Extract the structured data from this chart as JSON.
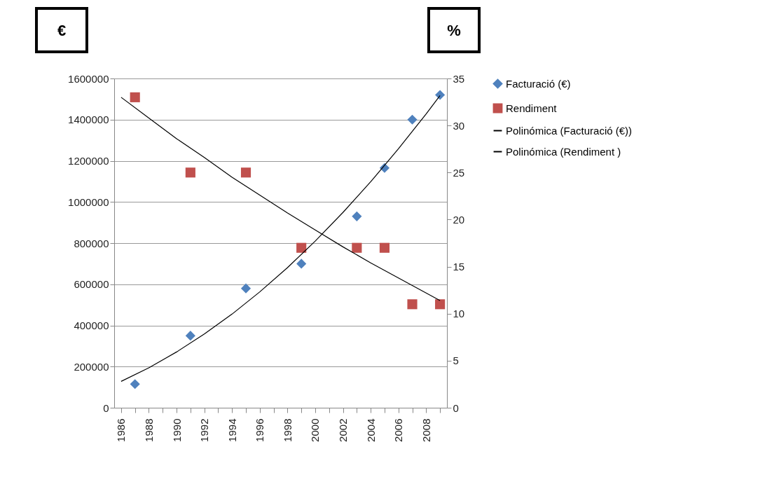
{
  "chart_data": {
    "type": "scatter",
    "annotations": [
      "€",
      "%"
    ],
    "xlim": [
      1985.5,
      2009.5
    ],
    "xticks": [
      1986,
      {
        "value": 1987,
        "label": null
      },
      1988,
      {
        "value": 1989,
        "label": null
      },
      1990,
      {
        "value": 1991,
        "label": null
      },
      1992,
      {
        "value": 1993,
        "label": null
      },
      1994,
      {
        "value": 1995,
        "label": null
      },
      1996,
      {
        "value": 1997,
        "label": null
      },
      1998,
      {
        "value": 1999,
        "label": null
      },
      2000,
      {
        "value": 2001,
        "label": null
      },
      2002,
      {
        "value": 2003,
        "label": null
      },
      2004,
      {
        "value": 2005,
        "label": null
      },
      2006,
      {
        "value": 2007,
        "label": null
      },
      2008,
      {
        "value": 2009,
        "label": null
      }
    ],
    "ylim": [
      0,
      1600000
    ],
    "yticks": [
      0,
      200000,
      400000,
      600000,
      800000,
      1000000,
      1200000,
      1400000,
      1600000
    ],
    "y2lim": [
      0,
      35
    ],
    "y2ticks": [
      0,
      5,
      10,
      15,
      20,
      25,
      30,
      35
    ],
    "grid": "y",
    "legend": "right",
    "series": [
      {
        "name": "Facturació (€)",
        "marker": "diamond",
        "color": "#4f81bd",
        "x": [
          1987,
          1991,
          1995,
          1999,
          2003,
          2005,
          2007,
          2009
        ],
        "values": [
          115000,
          350000,
          580000,
          700000,
          930000,
          1165000,
          1400000,
          1520000
        ]
      },
      {
        "name": "Rendiment",
        "marker": "square",
        "axis": "y2",
        "color": "#c0504d",
        "x": [
          1987,
          1991,
          1995,
          1999,
          2003,
          2005,
          2007,
          2009
        ],
        "values": [
          33,
          25,
          25,
          17,
          17,
          17,
          11,
          11
        ]
      },
      {
        "name": "Polinómica (Facturació (€))",
        "type": "line",
        "color": "#000000",
        "x": [
          1986,
          1988,
          1990,
          1992,
          1994,
          1996,
          1998,
          2000,
          2002,
          2004,
          2006,
          2008,
          2009
        ],
        "values": [
          128000,
          194000,
          271000,
          358000,
          455000,
          563000,
          681000,
          810000,
          949000,
          1098000,
          1258000,
          1428000,
          1517000
        ]
      },
      {
        "name": "Polinómica (Rendiment )",
        "type": "line",
        "axis": "y2",
        "color": "#000000",
        "x": [
          1986,
          1988,
          1990,
          1992,
          1994,
          1996,
          1998,
          2000,
          2002,
          2004,
          2006,
          2008,
          2009
        ],
        "values": [
          33.0,
          30.8,
          28.6,
          26.6,
          24.5,
          22.6,
          20.7,
          18.9,
          17.1,
          15.4,
          13.8,
          12.2,
          11.4
        ]
      }
    ]
  }
}
